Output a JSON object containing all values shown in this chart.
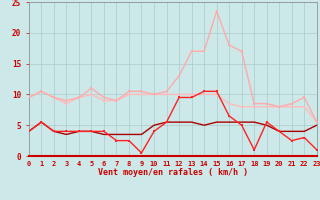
{
  "x": [
    0,
    1,
    2,
    3,
    4,
    5,
    6,
    7,
    8,
    9,
    10,
    11,
    12,
    13,
    14,
    15,
    16,
    17,
    18,
    19,
    20,
    21,
    22,
    23
  ],
  "series_rafales_max": [
    9.5,
    10.5,
    9.5,
    9.0,
    9.5,
    11.0,
    9.5,
    9.0,
    10.5,
    10.5,
    10.0,
    10.5,
    13.0,
    17.0,
    17.0,
    23.5,
    18.0,
    17.0,
    8.5,
    8.5,
    8.0,
    8.5,
    9.5,
    5.5
  ],
  "series_rafales_avg": [
    9.5,
    10.5,
    9.5,
    8.5,
    9.5,
    10.0,
    9.0,
    9.0,
    10.0,
    10.0,
    10.0,
    10.0,
    10.0,
    10.0,
    10.0,
    10.0,
    8.5,
    8.0,
    8.0,
    8.0,
    8.0,
    8.0,
    8.0,
    5.5
  ],
  "series_vent_mean": [
    4.0,
    5.5,
    4.0,
    4.0,
    4.0,
    4.0,
    4.0,
    2.5,
    2.5,
    0.5,
    4.0,
    5.5,
    9.5,
    9.5,
    10.5,
    10.5,
    6.5,
    5.0,
    1.0,
    5.5,
    4.0,
    2.5,
    3.0,
    1.0
  ],
  "series_vent_min": [
    4.0,
    5.5,
    4.0,
    3.5,
    4.0,
    4.0,
    3.5,
    3.5,
    3.5,
    3.5,
    5.0,
    5.5,
    5.5,
    5.5,
    5.0,
    5.5,
    5.5,
    5.5,
    5.5,
    5.0,
    4.0,
    4.0,
    4.0,
    5.0
  ],
  "color_rafales_max": "#ffaaaa",
  "color_rafales_avg": "#ffbbbb",
  "color_vent_mean": "#ff2222",
  "color_vent_min": "#aa0000",
  "bg_color": "#cce8e8",
  "grid_color": "#aacccc",
  "text_color": "#cc0000",
  "axis_label": "Vent moyen/en rafales ( km/h )",
  "yticks": [
    0,
    5,
    10,
    15,
    20,
    25
  ],
  "ylim": [
    0,
    25
  ],
  "xlim": [
    0,
    23
  ]
}
